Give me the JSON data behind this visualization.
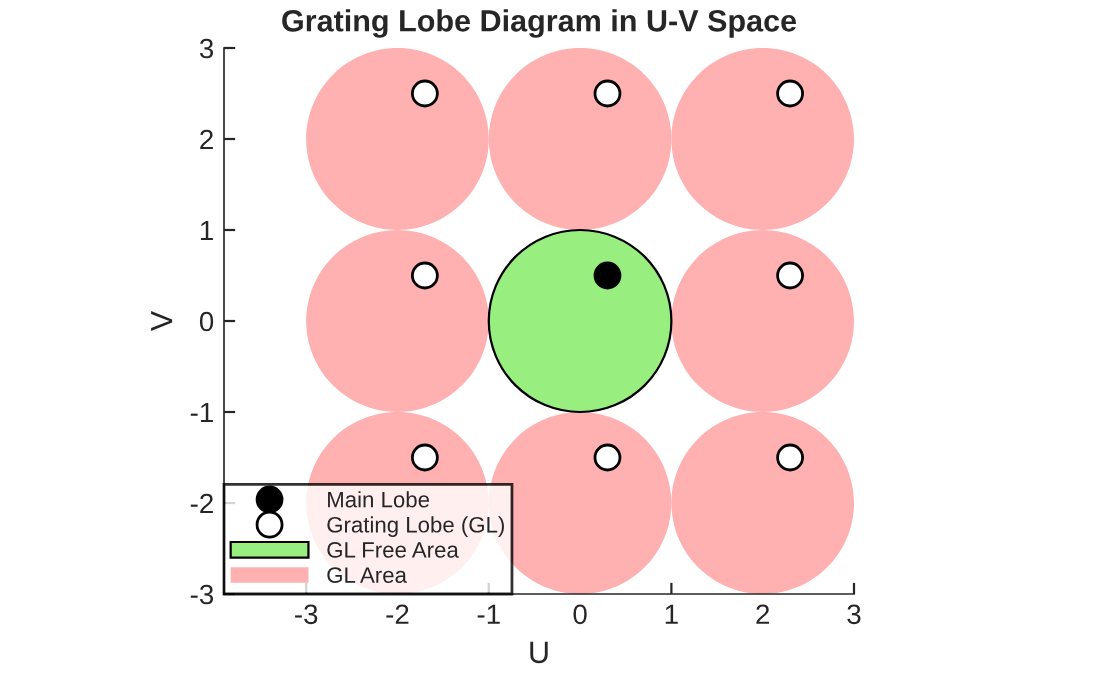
{
  "chart_data": {
    "type": "scatter",
    "title": "Grating Lobe Diagram in U-V Space",
    "xlabel": "U",
    "ylabel": "V",
    "xlim": [
      -3.9,
      3
    ],
    "xticks": [
      -3,
      -2,
      -1,
      0,
      1,
      2,
      3
    ],
    "ylim": [
      -3,
      3
    ],
    "yticks": [
      -3,
      -2,
      -1,
      0,
      1,
      2,
      3
    ],
    "grid": false,
    "legend": "bottom left",
    "marker": "circle",
    "series": [
      {
        "name": "Main Lobe",
        "color": "#000000",
        "x": [
          0.3
        ],
        "values": [
          0.5
        ]
      },
      {
        "name": "Grating Lobe (GL)",
        "color": "#ffffff",
        "x": [
          -1.7,
          0.3,
          2.3,
          -1.7,
          2.3,
          -1.7,
          0.3,
          2.3
        ],
        "values": [
          2.5,
          2.5,
          2.5,
          0.5,
          0.5,
          -1.5,
          -1.5,
          -1.5
        ]
      },
      {
        "name": "GL Free Area",
        "type": "bubble",
        "color": "#99ee80",
        "x": [
          0
        ],
        "values": [
          0
        ],
        "sizes": [
          1
        ]
      },
      {
        "name": "GL Area",
        "type": "bubble",
        "color": "#ffb0b0",
        "x": [
          -2,
          0,
          2,
          -2,
          2,
          -2,
          0,
          2
        ],
        "values": [
          2,
          2,
          2,
          0,
          0,
          -2,
          -2,
          -2
        ],
        "sizes": [
          1,
          1,
          1,
          1,
          1,
          1,
          1,
          1
        ]
      }
    ]
  }
}
